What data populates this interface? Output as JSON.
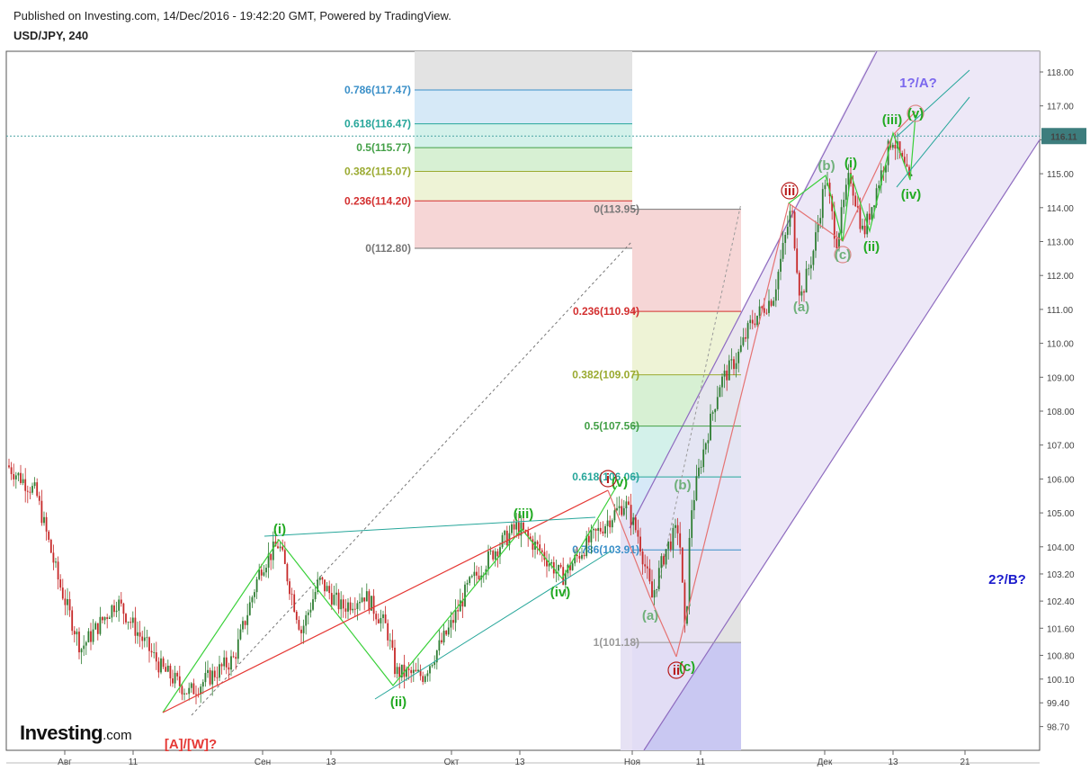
{
  "header": {
    "published": "Published on Investing.com, 14/Dec/2016 - 19:42:20 GMT, Powered by TradingView.",
    "symbol": "USD/JPY, 240"
  },
  "logo": {
    "brand": "Investing",
    "suffix": ".com"
  },
  "colors": {
    "up": "#2e7d32",
    "down": "#c62828",
    "channel": "#8e6bbf",
    "channel_fill": "#e9e2f5",
    "wave_green": "#22aa22",
    "wave_gray_green": "#6fb07a",
    "wave_red": "#b71c1c",
    "label_purple": "#7b68ee",
    "label_blue": "#1a1acc"
  },
  "chart_data": {
    "type": "candlestick",
    "title": "USD/JPY, 240",
    "ylim": [
      98.4,
      118.9
    ],
    "y_ticks": [
      "118.00",
      "117.00",
      "116.00",
      "115.00",
      "114.00",
      "113.00",
      "112.00",
      "111.00",
      "110.00",
      "109.00",
      "108.00",
      "107.00",
      "106.00",
      "105.00",
      "104.00",
      "103.20",
      "102.40",
      "101.60",
      "100.80",
      "100.10",
      "99.40",
      "98.70"
    ],
    "x_ticks": [
      "Авг",
      "11",
      "Сен",
      "13",
      "Окт",
      "13",
      "Ноя",
      "11",
      "Дек",
      "13",
      "21"
    ],
    "last_price": "116.11",
    "fib_retracement_upper": [
      {
        "label": "0.786(117.47)",
        "value": 117.47,
        "color": "#3a8fc8"
      },
      {
        "label": "0.618(116.47)",
        "value": 116.47,
        "color": "#26a69a"
      },
      {
        "label": "0.5(115.77)",
        "value": 115.77,
        "color": "#43a047"
      },
      {
        "label": "0.382(115.07)",
        "value": 115.07,
        "color": "#9aaa30"
      },
      {
        "label": "0.236(114.20)",
        "value": 114.2,
        "color": "#d32f2f"
      },
      {
        "label": "0(112.80)",
        "value": 112.8,
        "color": "#777777"
      }
    ],
    "fib_retracement_lower": [
      {
        "label": "0(113.95)",
        "value": 113.95,
        "color": "#777777"
      },
      {
        "label": "0.236(110.94)",
        "value": 110.94,
        "color": "#d32f2f"
      },
      {
        "label": "0.382(109.07)",
        "value": 109.07,
        "color": "#9aaa30"
      },
      {
        "label": "0.5(107.56)",
        "value": 107.56,
        "color": "#43a047"
      },
      {
        "label": "0.618(106.06)",
        "value": 106.06,
        "color": "#26a69a"
      },
      {
        "label": "0.786(103.91)",
        "value": 103.91,
        "color": "#3a8fc8"
      },
      {
        "label": "1(101.18)",
        "value": 101.18,
        "color": "#999999"
      }
    ],
    "wave_labels": [
      {
        "text": "(i)",
        "color": "#22aa22"
      },
      {
        "text": "(ii)",
        "color": "#22aa22"
      },
      {
        "text": "(iii)",
        "color": "#22aa22"
      },
      {
        "text": "(iv)",
        "color": "#22aa22"
      },
      {
        "text": "(v)",
        "color": "#22aa22"
      },
      {
        "text": "i",
        "color": "#b71c1c"
      },
      {
        "text": "(a)",
        "color": "#6fb07a"
      },
      {
        "text": "(b)",
        "color": "#6fb07a"
      },
      {
        "text": "(c)",
        "color": "#22aa22"
      },
      {
        "text": "ii",
        "color": "#b71c1c"
      },
      {
        "text": "(a)",
        "color": "#6fb07a"
      },
      {
        "text": "(b)",
        "color": "#6fb07a"
      },
      {
        "text": "iii",
        "color": "#b71c1c"
      },
      {
        "text": "(c)",
        "color": "#6fb07a"
      },
      {
        "text": "(i)",
        "color": "#22aa22"
      },
      {
        "text": "(ii)",
        "color": "#22aa22"
      },
      {
        "text": "(iii)",
        "color": "#22aa22"
      },
      {
        "text": "(iv)",
        "color": "#22aa22"
      },
      {
        "text": "(v)",
        "color": "#22aa22"
      },
      {
        "text": "1?/A?",
        "color": "#7b68ee"
      },
      {
        "text": "2?/B?",
        "color": "#1a1acc"
      },
      {
        "text": "[A]/[W]?",
        "color": "#e53935"
      }
    ]
  }
}
